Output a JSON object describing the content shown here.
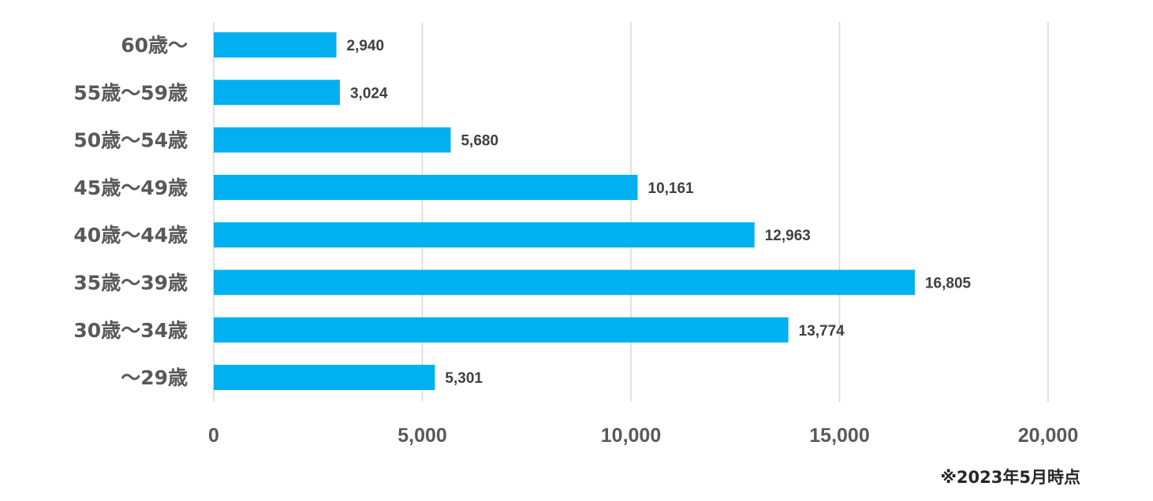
{
  "chart_data": {
    "type": "bar",
    "orientation": "horizontal",
    "categories": [
      "60歳〜",
      "55歳〜59歳",
      "50歳〜54歳",
      "45歳〜49歳",
      "40歳〜44歳",
      "35歳〜39歳",
      "30歳〜34歳",
      "〜29歳"
    ],
    "values": [
      2940,
      3024,
      5680,
      10161,
      12963,
      16805,
      13774,
      5301
    ],
    "value_labels": [
      "2,940",
      "3,024",
      "5,680",
      "10,161",
      "12,963",
      "16,805",
      "13,774",
      "5,301"
    ],
    "xlim": [
      0,
      20000
    ],
    "x_ticks": [
      0,
      5000,
      10000,
      15000,
      20000
    ],
    "x_tick_labels": [
      "0",
      "5,000",
      "10,000",
      "15,000",
      "20,000"
    ],
    "title": "",
    "xlabel": "",
    "ylabel": "",
    "grid": "vertical",
    "legend": "none",
    "bar_color": "#00B0F0",
    "gridline_color": "#D9D9D9"
  },
  "footnote": "※2023年5月時点"
}
